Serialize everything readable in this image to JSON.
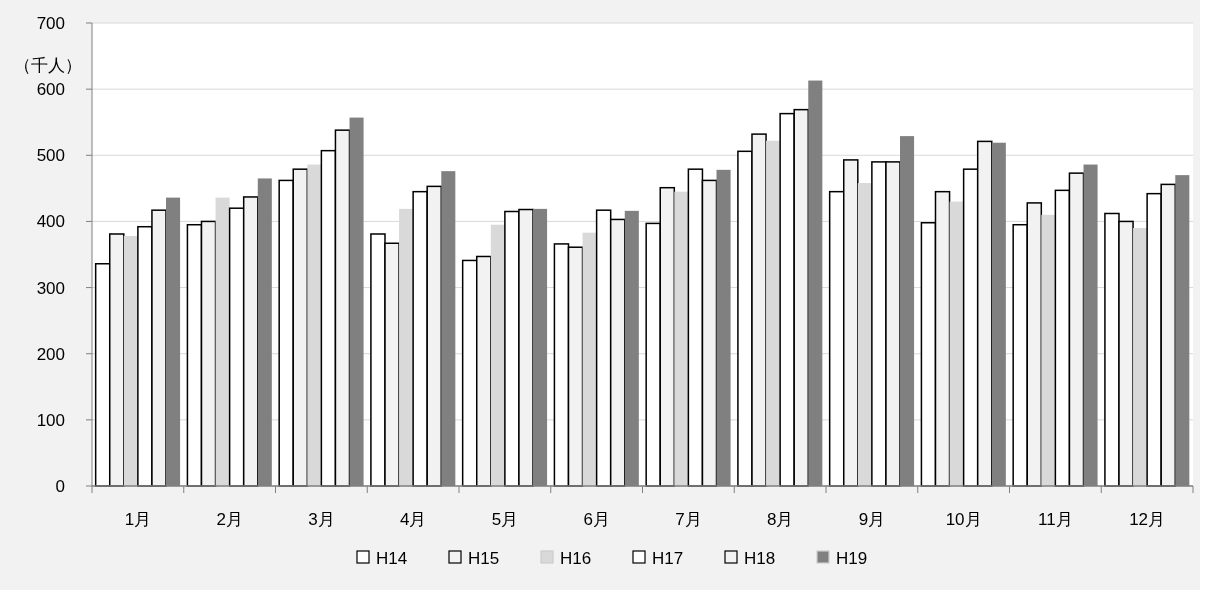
{
  "chart_data": {
    "type": "bar",
    "ylabel": "（千人）",
    "categories": [
      "1月",
      "2月",
      "3月",
      "4月",
      "5月",
      "6月",
      "7月",
      "8月",
      "9月",
      "10月",
      "11月",
      "12月"
    ],
    "series": [
      {
        "name": "H14",
        "color": "#ffffff",
        "values": [
          336,
          395,
          462,
          381,
          341,
          366,
          397,
          506,
          445,
          398,
          395,
          412
        ]
      },
      {
        "name": "H15",
        "color": "#f2f2f2",
        "values": [
          381,
          400,
          479,
          367,
          347,
          361,
          451,
          532,
          493,
          445,
          428,
          400
        ]
      },
      {
        "name": "H16",
        "color": "#d9d9d9",
        "values": [
          378,
          436,
          486,
          419,
          395,
          383,
          445,
          522,
          458,
          430,
          410,
          390
        ]
      },
      {
        "name": "H17",
        "color": "#ffffff",
        "values": [
          392,
          420,
          507,
          445,
          415,
          417,
          479,
          563,
          490,
          479,
          447,
          442
        ]
      },
      {
        "name": "H18",
        "color": "#f2f2f2",
        "values": [
          417,
          437,
          538,
          453,
          418,
          403,
          462,
          569,
          490,
          521,
          473,
          456
        ]
      },
      {
        "name": "H19",
        "color": "#808080",
        "values": [
          436,
          465,
          557,
          476,
          419,
          416,
          478,
          613,
          529,
          519,
          486,
          470
        ]
      }
    ],
    "ylim": [
      0,
      700
    ],
    "yticks": [
      0,
      100,
      200,
      300,
      400,
      500,
      600,
      700
    ],
    "grid": "y",
    "legend": "bottom"
  }
}
